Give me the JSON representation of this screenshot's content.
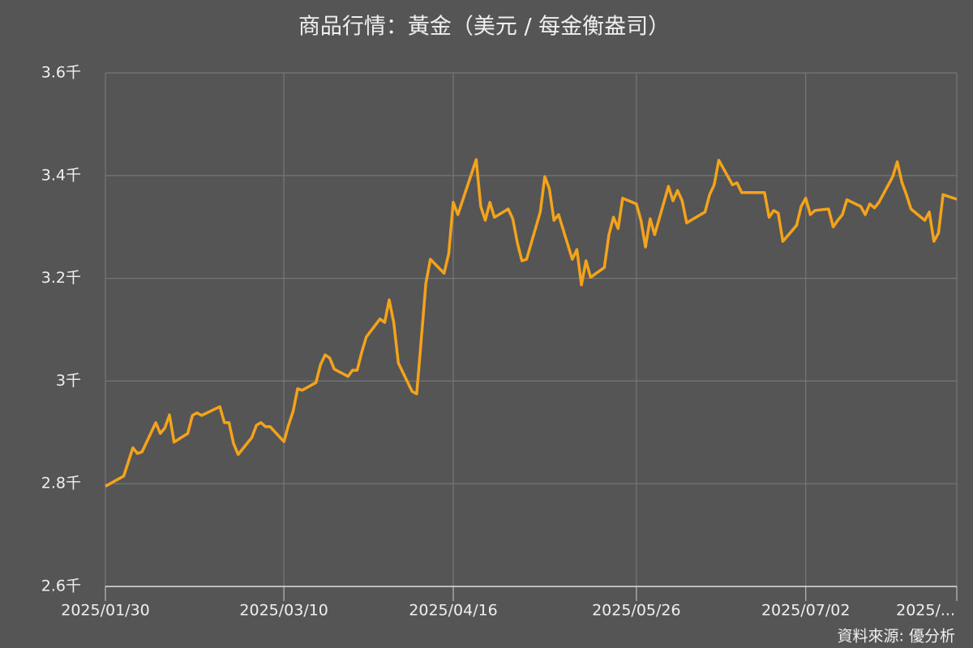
{
  "chart_data": {
    "type": "line",
    "title": "商品行情：黃金（美元 / 每金衡盎司）",
    "source": "資料來源: 優分析",
    "color": "#f5a31a",
    "grid": true,
    "x": [
      "2025/01/30",
      "2025/02/03",
      "2025/02/05",
      "2025/02/06",
      "2025/02/07",
      "2025/02/10",
      "2025/02/11",
      "2025/02/12",
      "2025/02/13",
      "2025/02/14",
      "2025/02/17",
      "2025/02/18",
      "2025/02/19",
      "2025/02/20",
      "2025/02/24",
      "2025/02/25",
      "2025/02/26",
      "2025/02/27",
      "2025/02/28",
      "2025/03/03",
      "2025/03/04",
      "2025/03/05",
      "2025/03/06",
      "2025/03/07",
      "2025/03/10",
      "2025/03/11",
      "2025/03/12",
      "2025/03/13",
      "2025/03/14",
      "2025/03/17",
      "2025/03/18",
      "2025/03/19",
      "2025/03/20",
      "2025/03/21",
      "2025/03/24",
      "2025/03/25",
      "2025/03/26",
      "2025/03/27",
      "2025/03/28",
      "2025/03/31",
      "2025/04/01",
      "2025/04/02",
      "2025/04/03",
      "2025/04/04",
      "2025/04/07",
      "2025/04/08",
      "2025/04/09",
      "2025/04/10",
      "2025/04/11",
      "2025/04/14",
      "2025/04/15",
      "2025/04/16",
      "2025/04/17",
      "2025/04/21",
      "2025/04/22",
      "2025/04/23",
      "2025/04/24",
      "2025/04/25",
      "2025/04/28",
      "2025/04/29",
      "2025/04/30",
      "2025/05/01",
      "2025/05/02",
      "2025/05/05",
      "2025/05/06",
      "2025/05/07",
      "2025/05/08",
      "2025/05/09",
      "2025/05/12",
      "2025/05/13",
      "2025/05/14",
      "2025/05/15",
      "2025/05/16",
      "2025/05/19",
      "2025/05/20",
      "2025/05/21",
      "2025/05/22",
      "2025/05/23",
      "2025/05/26",
      "2025/05/27",
      "2025/05/28",
      "2025/05/29",
      "2025/05/30",
      "2025/06/02",
      "2025/06/03",
      "2025/06/04",
      "2025/06/05",
      "2025/06/06",
      "2025/06/09",
      "2025/06/10",
      "2025/06/11",
      "2025/06/12",
      "2025/06/13",
      "2025/06/16",
      "2025/06/17",
      "2025/06/18",
      "2025/06/19",
      "2025/06/20",
      "2025/06/23",
      "2025/06/24",
      "2025/06/25",
      "2025/06/26",
      "2025/06/27",
      "2025/06/30",
      "2025/07/01",
      "2025/07/02",
      "2025/07/03",
      "2025/07/04",
      "2025/07/07",
      "2025/07/08",
      "2025/07/09",
      "2025/07/10",
      "2025/07/11",
      "2025/07/14",
      "2025/07/15",
      "2025/07/16",
      "2025/07/17",
      "2025/07/18",
      "2025/07/21",
      "2025/07/22",
      "2025/07/23",
      "2025/07/24",
      "2025/07/25",
      "2025/07/28",
      "2025/07/29",
      "2025/07/30",
      "2025/07/31",
      "2025/08/01",
      "2025/08/04"
    ],
    "values": [
      2795,
      2815,
      2870,
      2859,
      2862,
      2919,
      2898,
      2909,
      2934,
      2881,
      2898,
      2933,
      2938,
      2933,
      2950,
      2919,
      2919,
      2878,
      2857,
      2890,
      2914,
      2919,
      2911,
      2911,
      2882,
      2914,
      2941,
      2985,
      2982,
      2997,
      3032,
      3051,
      3045,
      3023,
      3009,
      3021,
      3021,
      3056,
      3086,
      3121,
      3114,
      3158,
      3114,
      3035,
      2980,
      2975,
      3080,
      3190,
      3237,
      3210,
      3248,
      3348,
      3324,
      3431,
      3340,
      3313,
      3348,
      3319,
      3335,
      3316,
      3269,
      3234,
      3237,
      3329,
      3398,
      3374,
      3313,
      3324,
      3237,
      3256,
      3187,
      3234,
      3202,
      3221,
      3285,
      3319,
      3297,
      3356,
      3345,
      3313,
      3261,
      3316,
      3285,
      3379,
      3351,
      3371,
      3351,
      3308,
      3324,
      3329,
      3363,
      3382,
      3430,
      3382,
      3386,
      3367,
      3367,
      3367,
      3367,
      3319,
      3332,
      3327,
      3272,
      3303,
      3340,
      3356,
      3324,
      3332,
      3335,
      3300,
      3313,
      3324,
      3353,
      3340,
      3324,
      3345,
      3337,
      3348,
      3398,
      3427,
      3387,
      3363,
      3335,
      3313,
      3329,
      3272,
      3288,
      3363,
      3354
    ],
    "xlim": [
      "2025/01/30",
      "2025/08/04"
    ],
    "xticks": [
      "2025/01/30",
      "2025/03/10",
      "2025/04/16",
      "2025/05/26",
      "2025/07/02",
      {
        "value": "2025/08/04",
        "label": "2025/..."
      }
    ],
    "ylim": [
      2600,
      3600
    ],
    "yticks": [
      {
        "value": 2600,
        "label": "2.6千"
      },
      {
        "value": 2800,
        "label": "2.8千"
      },
      {
        "value": 3000,
        "label": "3千"
      },
      {
        "value": 3200,
        "label": "3.2千"
      },
      {
        "value": 3400,
        "label": "3.4千"
      },
      {
        "value": 3600,
        "label": "3.6千"
      }
    ]
  }
}
